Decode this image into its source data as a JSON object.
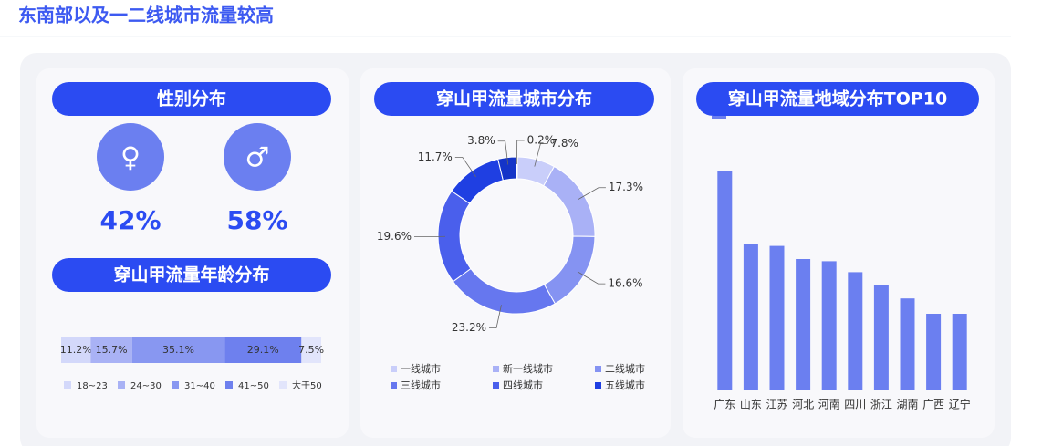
{
  "title": "东南部以及一二线城市流量较高",
  "chart_data": [
    {
      "type": "gender",
      "title": "性别分布",
      "categories": [
        "♀",
        "♂"
      ],
      "values": [
        42,
        58
      ],
      "value_labels": [
        "42%",
        "58%"
      ],
      "color": "#6b7ff0"
    },
    {
      "type": "stacked-bar",
      "title": "穿山甲流量年龄分布",
      "series": [
        {
          "name": "18~23",
          "color": "#d3d8fa",
          "values": [
            11.2
          ],
          "value_labels": [
            "11.2%"
          ]
        },
        {
          "name": "24~30",
          "color": "#a9b2f5",
          "values": [
            15.7
          ],
          "value_labels": [
            "15.7%"
          ]
        },
        {
          "name": "31~40",
          "color": "#8897f1",
          "values": [
            35.1
          ],
          "value_labels": [
            "35.1%"
          ]
        },
        {
          "name": "41~50",
          "color": "#6e80ee",
          "values": [
            29.1
          ],
          "value_labels": [
            "29.1%"
          ]
        },
        {
          "name": "大于50",
          "color": "#e2e5fb",
          "values": [
            7.5
          ],
          "value_labels": [
            "7.5%"
          ]
        }
      ]
    },
    {
      "type": "donut",
      "title": "穿山甲流量城市分布",
      "categories": [
        "一线城市",
        "新一线城市",
        "二线城市",
        "三线城市",
        "四线城市",
        "五线城市",
        null,
        null
      ],
      "values": [
        7.8,
        17.3,
        16.6,
        23.2,
        19.6,
        11.7,
        3.8,
        0.2
      ],
      "value_labels": [
        "7.8%",
        "17.3%",
        "16.6%",
        "23.2%",
        "19.6%",
        "11.7%",
        "3.8%",
        "0.2%"
      ],
      "colors": [
        "#c9cefa",
        "#a9b1f6",
        "#8593f2",
        "#6677ef",
        "#4a5fec",
        "#1f3fe2",
        "#1434c8",
        "#e8eafd"
      ]
    },
    {
      "type": "bar",
      "title": "穿山甲流量地域分布TOP10",
      "categories": [
        "广东",
        "山东",
        "江苏",
        "河北",
        "河南",
        "四川",
        "浙江",
        "湖南",
        "广西",
        "辽宁"
      ],
      "values": [
        100,
        67,
        66,
        60,
        59,
        54,
        48,
        42,
        35,
        35
      ],
      "ylim": [
        0,
        100
      ],
      "color": "#6b7ff0"
    }
  ]
}
